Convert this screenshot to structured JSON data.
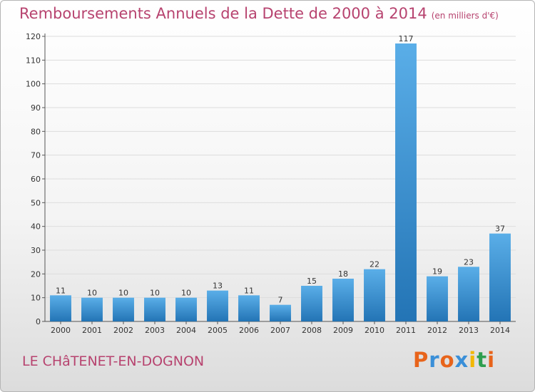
{
  "title": {
    "main": "Remboursements Annuels de la Dette de 2000 à 2014",
    "unit": "(en milliers d'€)"
  },
  "commune": "LE CHâTENET-EN-DOGNON",
  "logo": {
    "text": "Proxiti",
    "letter_colors": [
      "#e8641b",
      "#3a8fd8",
      "#e8641b",
      "#3a8fd8",
      "#f2b705",
      "#2e9e4f",
      "#e8641b"
    ]
  },
  "colors": {
    "title": "#b7436f",
    "bar_light": "#5aaee8",
    "bar_dark": "#2374b5",
    "grid": "#dddddd"
  },
  "chart_data": {
    "type": "bar",
    "categories": [
      "2000",
      "2001",
      "2002",
      "2003",
      "2004",
      "2005",
      "2006",
      "2007",
      "2008",
      "2009",
      "2010",
      "2011",
      "2012",
      "2013",
      "2014"
    ],
    "values": [
      11,
      10,
      10,
      10,
      10,
      13,
      11,
      7,
      15,
      18,
      22,
      117,
      19,
      23,
      37
    ],
    "title": "Remboursements Annuels de la Dette de 2000 à 2014",
    "xlabel": "",
    "ylabel": "",
    "ylim": [
      0,
      120
    ],
    "yticks": [
      0,
      10,
      20,
      30,
      40,
      50,
      60,
      70,
      80,
      90,
      100,
      110,
      120
    ],
    "grid": true,
    "data_labels": true
  }
}
